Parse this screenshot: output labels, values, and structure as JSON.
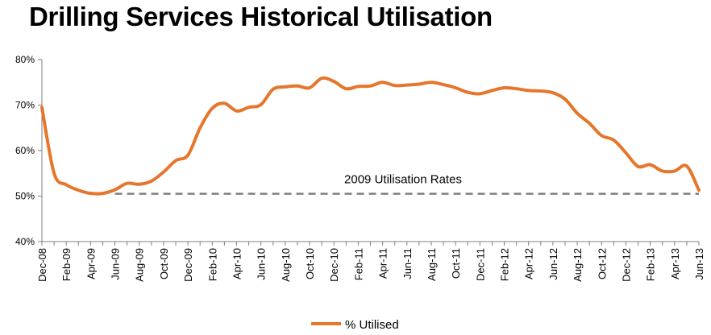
{
  "chart_data": {
    "type": "line",
    "title": "Drilling Services Historical Utilisation",
    "x": [
      "Dec-08",
      "Jan-09",
      "Feb-09",
      "Mar-09",
      "Apr-09",
      "May-09",
      "Jun-09",
      "Jul-09",
      "Aug-09",
      "Sep-09",
      "Oct-09",
      "Nov-09",
      "Dec-09",
      "Jan-10",
      "Feb-10",
      "Mar-10",
      "Apr-10",
      "May-10",
      "Jun-10",
      "Jul-10",
      "Aug-10",
      "Sep-10",
      "Oct-10",
      "Nov-10",
      "Dec-10",
      "Jan-11",
      "Feb-11",
      "Mar-11",
      "Apr-11",
      "May-11",
      "Jun-11",
      "Jul-11",
      "Aug-11",
      "Sep-11",
      "Oct-11",
      "Nov-11",
      "Dec-11",
      "Jan-12",
      "Feb-12",
      "Mar-12",
      "Apr-12",
      "May-12",
      "Jun-12",
      "Jul-12",
      "Aug-12",
      "Sep-12",
      "Oct-12",
      "Nov-12",
      "Dec-12",
      "Jan-13",
      "Feb-13",
      "Mar-13",
      "Apr-13",
      "May-13",
      "Jun-13"
    ],
    "x_tick_labels": [
      "Dec-08",
      "Feb-09",
      "Apr-09",
      "Jun-09",
      "Aug-09",
      "Oct-09",
      "Dec-09",
      "Feb-10",
      "Apr-10",
      "Jun-10",
      "Aug-10",
      "Oct-10",
      "Dec-10",
      "Feb-11",
      "Apr-11",
      "Jun-11",
      "Aug-11",
      "Oct-11",
      "Dec-11",
      "Feb-12",
      "Apr-12",
      "Jun-12",
      "Aug-12",
      "Oct-12",
      "Dec-12",
      "Feb-13",
      "Apr-13",
      "Jun-13"
    ],
    "series": [
      {
        "name": "% Utilised",
        "color": "#E5762B",
        "values": [
          69.5,
          55.0,
          52.5,
          51.3,
          50.6,
          50.6,
          51.4,
          52.8,
          52.6,
          53.3,
          55.3,
          57.8,
          59.0,
          65.0,
          69.3,
          70.4,
          68.7,
          69.5,
          70.1,
          73.5,
          74.0,
          74.2,
          73.8,
          75.9,
          75.2,
          73.6,
          74.1,
          74.2,
          75.0,
          74.3,
          74.4,
          74.6,
          75.0,
          74.5,
          73.8,
          72.8,
          72.5,
          73.2,
          73.8,
          73.6,
          73.2,
          73.1,
          72.7,
          71.3,
          68.2,
          66.0,
          63.3,
          62.3,
          59.5,
          56.5,
          56.9,
          55.5,
          55.5,
          56.6,
          51.3
        ]
      }
    ],
    "reference_line": {
      "value": 50.5,
      "label": "2009 Utilisation Rates",
      "color": "#808080",
      "style": "dashed"
    },
    "ylim": [
      40,
      80
    ],
    "y_ticks": [
      40,
      50,
      60,
      70,
      80
    ],
    "y_tick_labels": [
      "40%",
      "50%",
      "60%",
      "70%",
      "80%"
    ],
    "grid": false,
    "legend": {
      "position": "bottom-center",
      "entries": [
        "% Utilised"
      ]
    }
  }
}
